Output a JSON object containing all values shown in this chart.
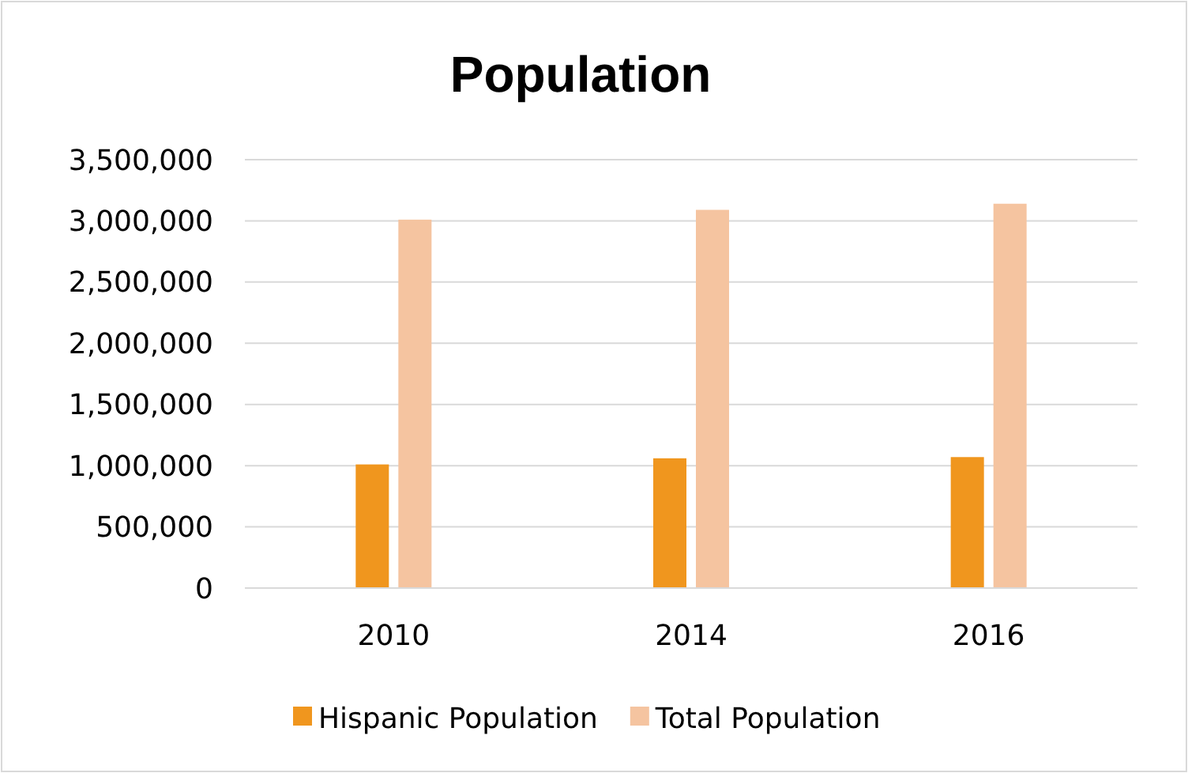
{
  "chart_data": {
    "type": "bar",
    "title": "Population",
    "categories": [
      "2010",
      "2014",
      "2016"
    ],
    "series": [
      {
        "name": "Hispanic Population",
        "color": "#f0961e",
        "values": [
          1010000,
          1060000,
          1070000
        ]
      },
      {
        "name": "Total Population",
        "color": "#f5c4a0",
        "values": [
          3010000,
          3090000,
          3140000
        ]
      }
    ],
    "ylim": [
      0,
      3500000
    ],
    "yticks": [
      {
        "value": 0,
        "label": "0"
      },
      {
        "value": 500000,
        "label": "500,000"
      },
      {
        "value": 1000000,
        "label": "1,000,000"
      },
      {
        "value": 1500000,
        "label": "1,500,000"
      },
      {
        "value": 2000000,
        "label": "2,000,000"
      },
      {
        "value": 2500000,
        "label": "2,500,000"
      },
      {
        "value": 3000000,
        "label": "3,000,000"
      },
      {
        "value": 3500000,
        "label": "3,500,000"
      }
    ],
    "grid": "y",
    "legend": "bottom"
  }
}
